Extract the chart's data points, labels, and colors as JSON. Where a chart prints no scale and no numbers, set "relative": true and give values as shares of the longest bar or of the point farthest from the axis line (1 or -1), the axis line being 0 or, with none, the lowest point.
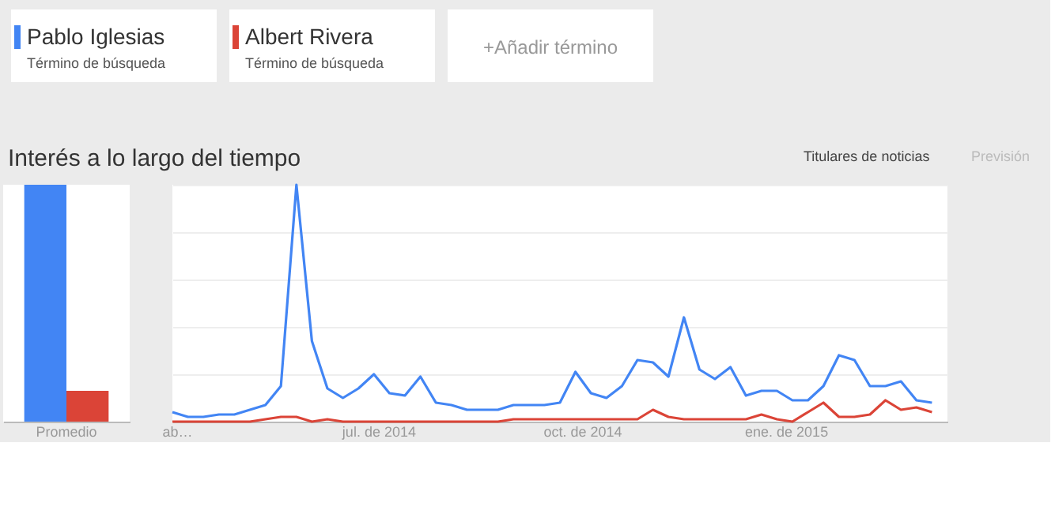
{
  "chart_data": [
    {
      "type": "bar",
      "categories": [
        "Promedio"
      ],
      "relative": true,
      "series": [
        {
          "color": "#4285f4",
          "values": [
            1
          ]
        },
        {
          "color": "#db4437",
          "values": [
            0.13
          ]
        }
      ]
    },
    {
      "type": "line",
      "title": "Interés a lo largo del tiempo",
      "relative": true,
      "grid": "y",
      "legend": "top left",
      "annotations": [
        "Término de búsqueda",
        "Término de búsqueda",
        "+Añadir término",
        "Titulares de noticias",
        "Previsión"
      ],
      "x": [
        "2014-03-30",
        "2014-04-06",
        "2014-04-13",
        "2014-04-20",
        "2014-04-27",
        "2014-05-04",
        "2014-05-11",
        "2014-05-18",
        "2014-05-25",
        "2014-06-01",
        "2014-06-08",
        "2014-06-15",
        "2014-06-22",
        "2014-06-29",
        "2014-07-06",
        "2014-07-13",
        "2014-07-20",
        "2014-07-27",
        "2014-08-03",
        "2014-08-10",
        "2014-08-17",
        "2014-08-24",
        "2014-08-31",
        "2014-09-07",
        "2014-09-14",
        "2014-09-21",
        "2014-09-28",
        "2014-10-05",
        "2014-10-12",
        "2014-10-19",
        "2014-10-26",
        "2014-11-02",
        "2014-11-09",
        "2014-11-16",
        "2014-11-23",
        "2014-11-30",
        "2014-12-07",
        "2014-12-14",
        "2014-12-21",
        "2014-12-28",
        "2015-01-04",
        "2015-01-11",
        "2015-01-18",
        "2015-01-25",
        "2015-02-01",
        "2015-02-08",
        "2015-02-15",
        "2015-02-22",
        "2015-03-01",
        "2015-03-08"
      ],
      "xlim": [
        "2014-03-30",
        "2015-03-15"
      ],
      "xticks": [
        {
          "value": "2014-04-01",
          "label": "ab…"
        },
        {
          "value": "2014-07-01",
          "label": "jul. de 2014"
        },
        {
          "value": "2014-10-01",
          "label": "oct. de 2014"
        },
        {
          "value": "2015-01-01",
          "label": "ene. de 2015"
        }
      ],
      "series": [
        {
          "name": "Pablo Iglesias",
          "color": "#4285f4",
          "values": [
            0.04,
            0.02,
            0.02,
            0.03,
            0.03,
            0.05,
            0.07,
            0.15,
            1.0,
            0.34,
            0.14,
            0.1,
            0.14,
            0.2,
            0.12,
            0.11,
            0.19,
            0.08,
            0.07,
            0.05,
            0.05,
            0.05,
            0.07,
            0.07,
            0.07,
            0.08,
            0.21,
            0.12,
            0.1,
            0.15,
            0.26,
            0.25,
            0.19,
            0.44,
            0.22,
            0.18,
            0.23,
            0.11,
            0.13,
            0.13,
            0.09,
            0.09,
            0.15,
            0.28,
            0.26,
            0.15,
            0.15,
            0.17,
            0.09,
            0.08
          ]
        },
        {
          "name": "Albert Rivera",
          "color": "#db4437",
          "values": [
            0,
            0,
            0,
            0,
            0,
            0,
            0.01,
            0.02,
            0.02,
            0,
            0.01,
            0,
            0,
            0,
            0,
            0,
            0,
            0,
            0,
            0,
            0,
            0,
            0.01,
            0.01,
            0.01,
            0.01,
            0.01,
            0.01,
            0.01,
            0.01,
            0.01,
            0.05,
            0.02,
            0.01,
            0.01,
            0.01,
            0.01,
            0.01,
            0.03,
            0.01,
            0,
            0.04,
            0.08,
            0.02,
            0.02,
            0.03,
            0.09,
            0.05,
            0.06,
            0.04
          ]
        }
      ]
    }
  ]
}
